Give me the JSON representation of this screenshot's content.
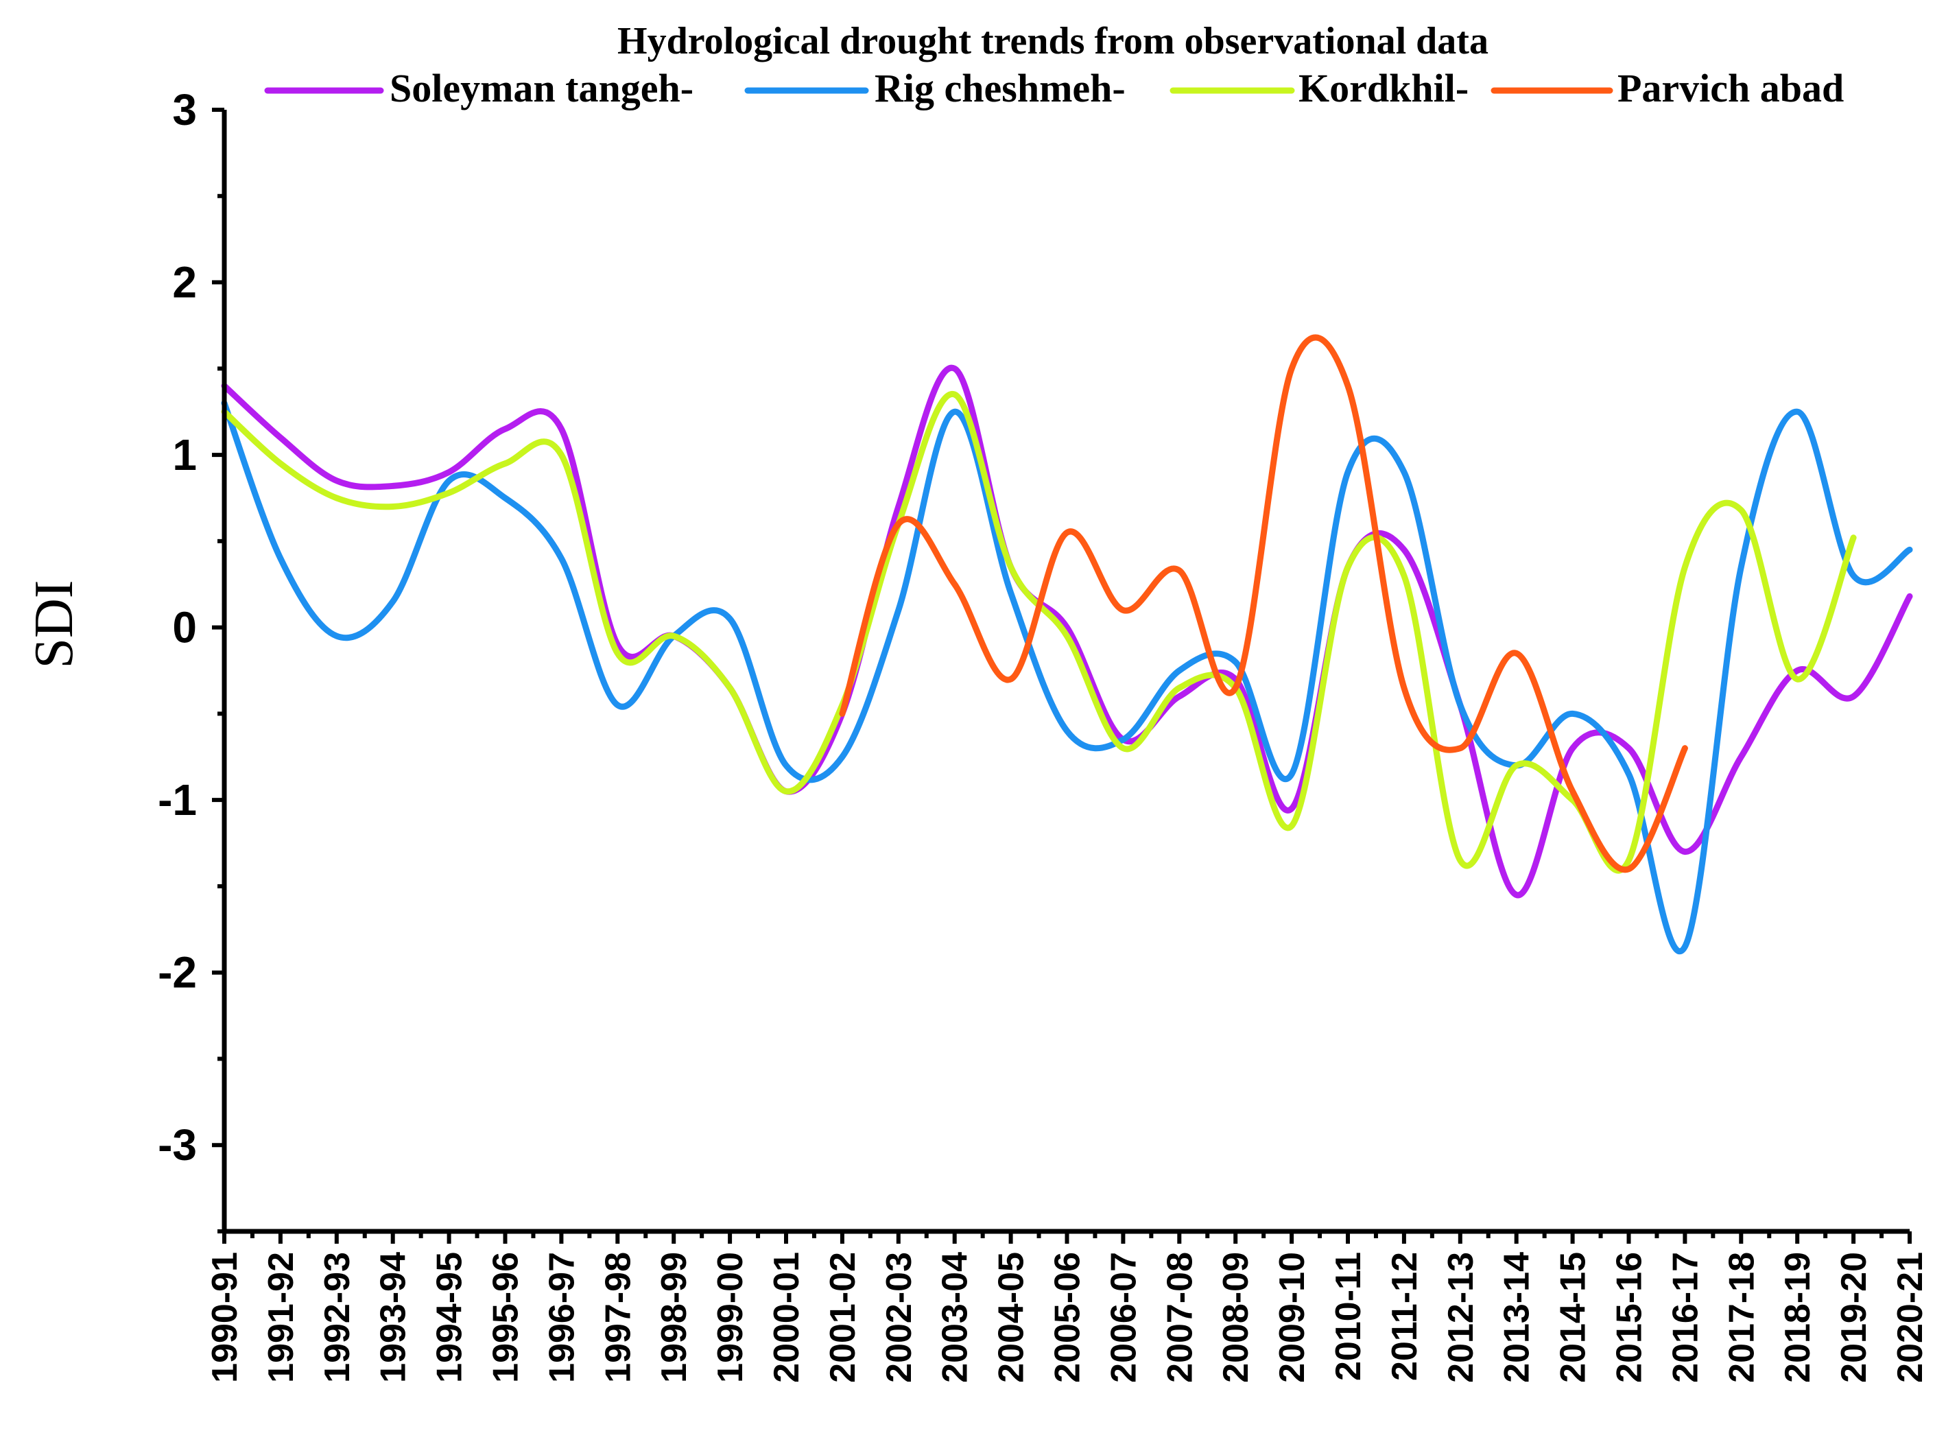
{
  "chart_data": {
    "type": "line",
    "title": "Hydrological drought trends from observational data",
    "xlabel": "",
    "ylabel": "SDI",
    "ylim": [
      -3.5,
      3
    ],
    "yticks": [
      3,
      2,
      1,
      0,
      -1,
      -2,
      -3
    ],
    "grid": false,
    "legend_position": "top",
    "categories": [
      "1990-91",
      "1991-92",
      "1992-93",
      "1993-94",
      "1994-95",
      "1995-96",
      "1996-97",
      "1997-98",
      "1998-99",
      "1999-00",
      "2000-01",
      "2001-02",
      "2002-03",
      "2003-04",
      "2004-05",
      "2005-06",
      "2006-07",
      "2007-08",
      "2008-09",
      "2009-10",
      "2010-11",
      "2011-12",
      "2012-13",
      "2013-14",
      "2014-15",
      "2015-16",
      "2016-17",
      "2017-18",
      "2018-19",
      "2019-20",
      "2020-21"
    ],
    "series": [
      {
        "name": "Soleyman tangeh-",
        "color": "#B41EF0",
        "values": [
          1.4,
          1.1,
          0.85,
          0.82,
          0.9,
          1.15,
          1.15,
          -0.1,
          -0.05,
          -0.35,
          -0.95,
          -0.5,
          0.7,
          1.5,
          0.35,
          0.0,
          -0.65,
          -0.4,
          -0.3,
          -1.05,
          0.35,
          0.45,
          -0.45,
          -1.55,
          -0.7,
          -0.7,
          -1.3,
          -0.75,
          -0.25,
          -0.4,
          0.18
        ]
      },
      {
        "name": "Rig cheshmeh-",
        "color": "#1E90F0",
        "values": [
          1.3,
          0.4,
          -0.05,
          0.15,
          0.85,
          0.75,
          0.4,
          -0.45,
          -0.05,
          0.05,
          -0.8,
          -0.75,
          0.1,
          1.25,
          0.2,
          -0.6,
          -0.65,
          -0.25,
          -0.2,
          -0.85,
          0.9,
          0.9,
          -0.45,
          -0.8,
          -0.5,
          -0.85,
          -1.85,
          0.35,
          1.25,
          0.3,
          0.45
        ]
      },
      {
        "name": "Kordkhil-",
        "color": "#C8F51E",
        "values": [
          1.25,
          0.95,
          0.75,
          0.7,
          0.78,
          0.95,
          1.0,
          -0.15,
          -0.05,
          -0.35,
          -0.95,
          -0.45,
          0.6,
          1.35,
          0.35,
          -0.05,
          -0.7,
          -0.35,
          -0.35,
          -1.15,
          0.35,
          0.3,
          -1.35,
          -0.8,
          -1.0,
          -1.35,
          0.35,
          0.68,
          -0.3,
          0.52,
          null
        ]
      },
      {
        "name": "Parvich abad",
        "color": "#FF5A14",
        "values": [
          null,
          null,
          null,
          null,
          null,
          null,
          null,
          null,
          null,
          null,
          null,
          -0.5,
          0.6,
          0.25,
          -0.3,
          0.55,
          0.1,
          0.33,
          -0.35,
          1.5,
          1.4,
          -0.35,
          -0.7,
          -0.15,
          -0.95,
          -1.4,
          -0.7,
          null,
          null,
          null,
          null
        ]
      }
    ]
  }
}
